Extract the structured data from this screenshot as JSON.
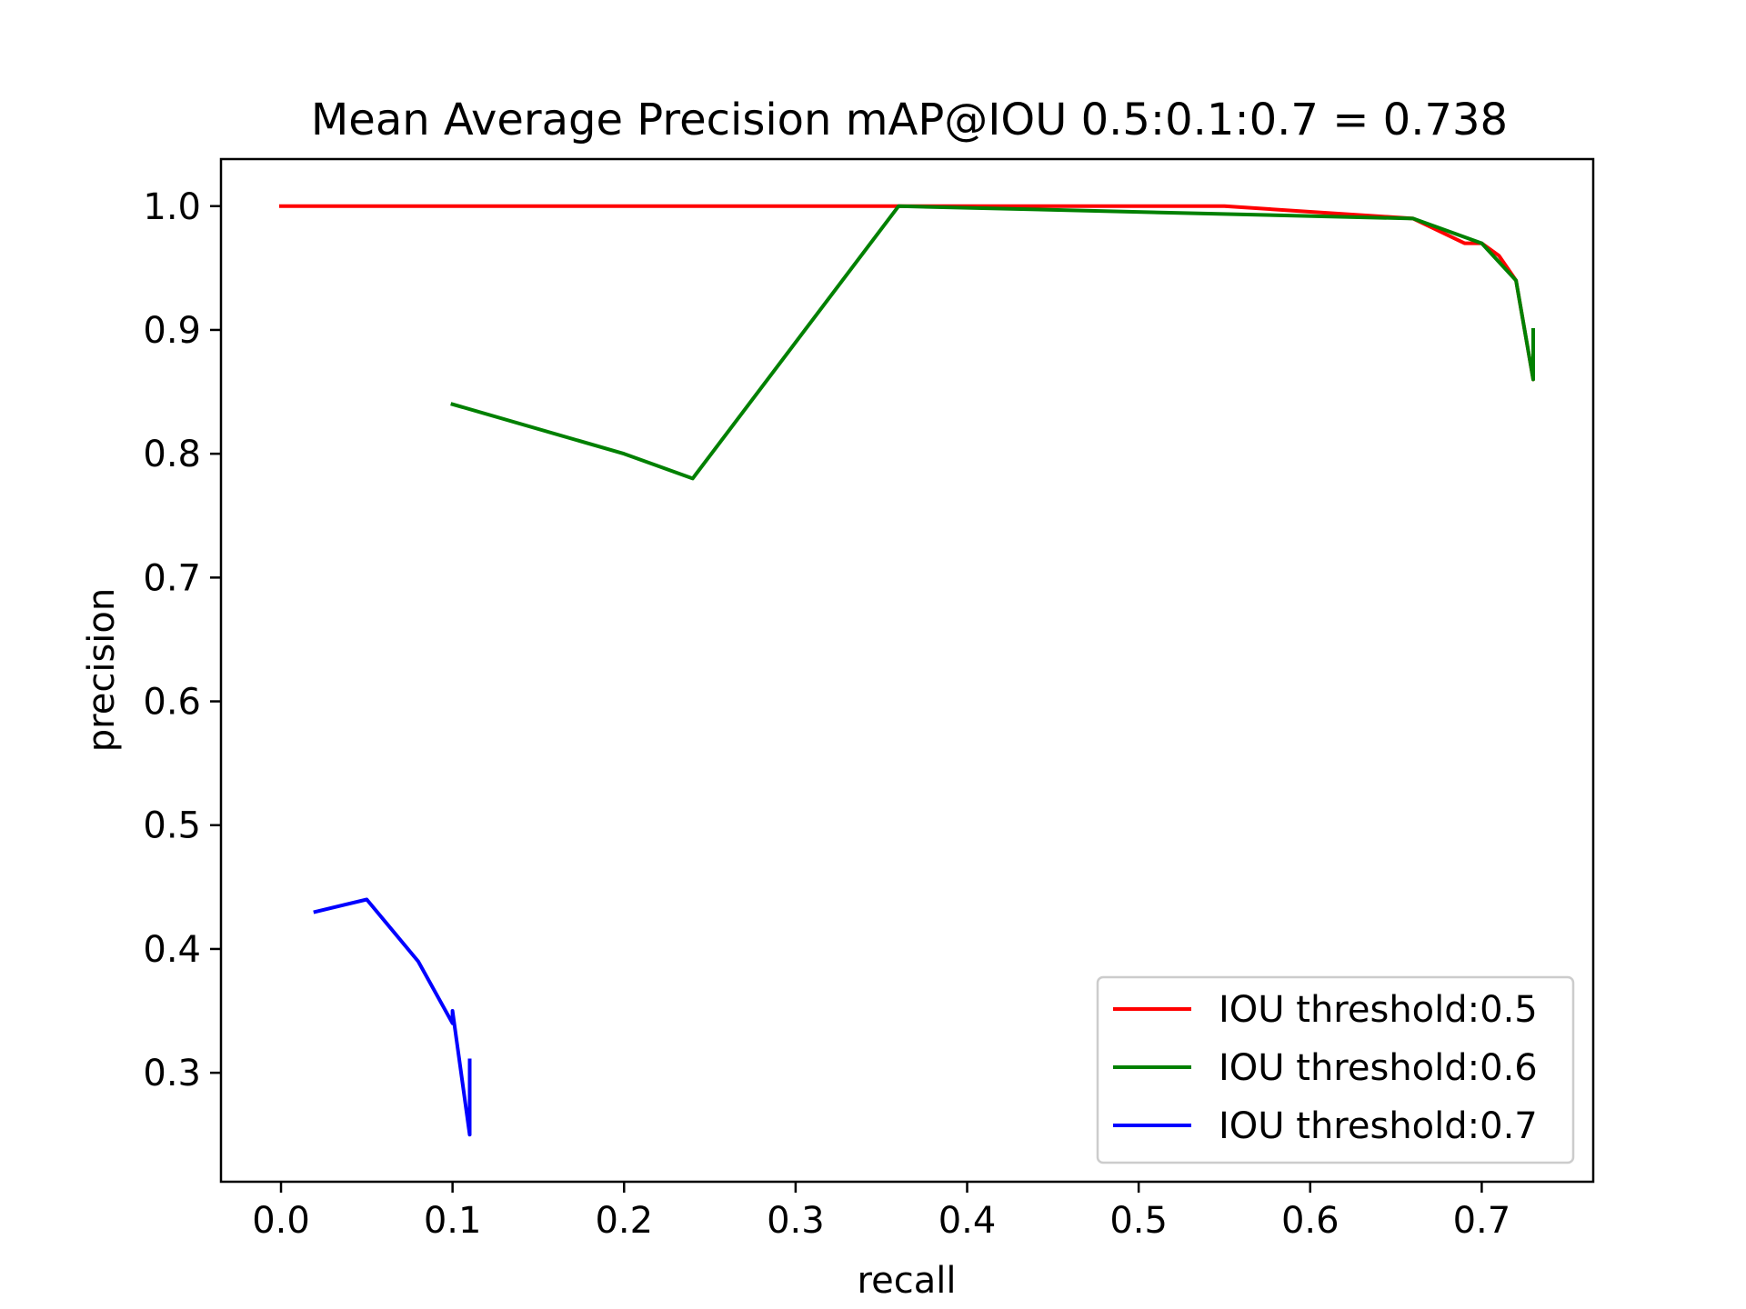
{
  "chart_data": {
    "type": "line",
    "title": "Mean Average Precision mAP@IOU 0.5:0.1:0.7 = 0.738",
    "xlabel": "recall",
    "ylabel": "precision",
    "xlim": [
      -0.035,
      0.765
    ],
    "ylim": [
      0.212,
      1.038
    ],
    "xticks": [
      0.0,
      0.1,
      0.2,
      0.3,
      0.4,
      0.5,
      0.6,
      0.7
    ],
    "xtick_labels": [
      "0.0",
      "0.1",
      "0.2",
      "0.3",
      "0.4",
      "0.5",
      "0.6",
      "0.7"
    ],
    "yticks": [
      0.3,
      0.4,
      0.5,
      0.6,
      0.7,
      0.8,
      0.9,
      1.0
    ],
    "ytick_labels": [
      "0.3",
      "0.4",
      "0.5",
      "0.6",
      "0.7",
      "0.8",
      "0.9",
      "1.0"
    ],
    "grid": false,
    "legend_position": "lower-right",
    "series": [
      {
        "name": "IOU threshold:0.5",
        "color": "#ff0000",
        "x": [
          0.0,
          0.36,
          0.55,
          0.66,
          0.69,
          0.7,
          0.71,
          0.72,
          0.73,
          0.73
        ],
        "y": [
          1.0,
          1.0,
          1.0,
          0.99,
          0.97,
          0.97,
          0.96,
          0.94,
          0.86,
          0.9
        ]
      },
      {
        "name": "IOU threshold:0.6",
        "color": "#008000",
        "x": [
          0.1,
          0.2,
          0.24,
          0.36,
          0.66,
          0.7,
          0.72,
          0.73,
          0.73
        ],
        "y": [
          0.84,
          0.8,
          0.78,
          1.0,
          0.99,
          0.97,
          0.94,
          0.86,
          0.9
        ]
      },
      {
        "name": "IOU threshold:0.7",
        "color": "#0000ff",
        "x": [
          0.02,
          0.05,
          0.08,
          0.1,
          0.1,
          0.11,
          0.11
        ],
        "y": [
          0.43,
          0.44,
          0.39,
          0.34,
          0.35,
          0.25,
          0.31
        ]
      }
    ]
  }
}
